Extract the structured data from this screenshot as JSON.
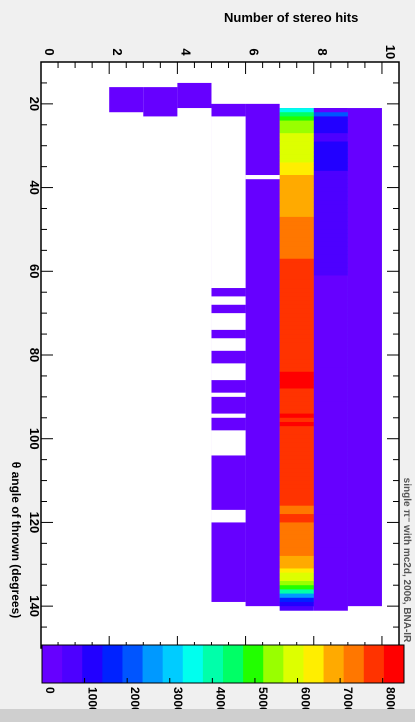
{
  "chart_data": {
    "type": "heatmap",
    "title": "Number of stereo hits",
    "xlabel": "θ angle of thrown (degrees)",
    "ylabel": "",
    "annotation": "single π⁻ with mc2d, 2006, BNA-IR",
    "x_range": [
      10,
      150
    ],
    "y_range": [
      0,
      10.5
    ],
    "x_ticks": [
      20,
      40,
      60,
      80,
      100,
      120,
      140
    ],
    "y_ticks": [
      0,
      2,
      4,
      6,
      8,
      10
    ],
    "colorbar": {
      "min": 0,
      "max": 8500,
      "tick_labels": [
        "0",
        "1000",
        "2000",
        "3000",
        "4000",
        "5000",
        "6000",
        "7000",
        "8000"
      ],
      "tick_values": [
        0,
        1000,
        2000,
        3000,
        4000,
        5000,
        6000,
        7000,
        8000
      ],
      "palette": [
        "#6600ff",
        "#4d00ff",
        "#2200ff",
        "#0022ff",
        "#0055ff",
        "#0099ff",
        "#00ccff",
        "#00ffee",
        "#00ffaa",
        "#00ff66",
        "#22ff00",
        "#99ff00",
        "#ddff00",
        "#ffee00",
        "#ffaa00",
        "#ff7700",
        "#ff3300",
        "#ff0000"
      ]
    },
    "bands": [
      {
        "y": 2.5,
        "x_start": 16,
        "x_end": 22,
        "value": 30
      },
      {
        "y": 3.5,
        "x_start": 16,
        "x_end": 23,
        "value": 30
      },
      {
        "y": 4.5,
        "x_start": 15,
        "x_end": 21,
        "value": 30
      },
      {
        "y": 5.5,
        "x_start": 20,
        "x_end": 139,
        "value": 40
      },
      {
        "y": 6.5,
        "x_start": 20,
        "x_end": 140,
        "value": 400
      },
      {
        "y": 7.5,
        "x_start": 21,
        "x_end": 140,
        "value": 800
      },
      {
        "y": 8.5,
        "x_start": 21,
        "x_end": 140,
        "value": 1200
      },
      {
        "y": 9.5,
        "x_start": 21,
        "x_end": 140,
        "value": 400
      }
    ],
    "gaps": [
      {
        "y": 5.5,
        "x_start": 23,
        "x_end": 64
      },
      {
        "y": 5.5,
        "x_start": 66,
        "x_end": 68
      },
      {
        "y": 5.5,
        "x_start": 70,
        "x_end": 74
      },
      {
        "y": 5.5,
        "x_start": 76,
        "x_end": 79
      },
      {
        "y": 5.5,
        "x_start": 82,
        "x_end": 86
      },
      {
        "y": 5.5,
        "x_start": 89,
        "x_end": 90
      },
      {
        "y": 5.5,
        "x_start": 94,
        "x_end": 95
      },
      {
        "y": 5.5,
        "x_start": 98,
        "x_end": 104
      },
      {
        "y": 5.5,
        "x_start": 117,
        "x_end": 120
      },
      {
        "y": 6.5,
        "x_start": 37,
        "x_end": 38
      }
    ],
    "main_row": {
      "y": 7.5,
      "x_start": 21,
      "x_step": 1,
      "values": [
        3700,
        4700,
        4800,
        5300,
        5600,
        5600,
        5800,
        5800,
        5900,
        6000,
        6000,
        6100,
        6100,
        6400,
        6500,
        6500,
        6700,
        6700,
        6700,
        6800,
        6800,
        6900,
        6900,
        7000,
        7000,
        7000,
        7100,
        7100,
        7300,
        7300,
        7300,
        7400,
        7400,
        7500,
        7500,
        7500,
        7600,
        7600,
        7600,
        7700,
        7700,
        7700,
        7700,
        7800,
        7800,
        7800,
        7800,
        7800,
        7900,
        7900,
        7900,
        7900,
        7900,
        8000,
        8000,
        8000,
        8000,
        8000,
        8000,
        8000,
        8000,
        8000,
        8000,
        8100,
        8100,
        8100,
        8100,
        7800,
        7800,
        7900,
        7800,
        8000,
        7700,
        8100,
        7800,
        8100,
        8000,
        8000,
        7700,
        7800,
        7700,
        7800,
        8000,
        8000,
        8000,
        8000,
        7700,
        7700,
        7800,
        7700,
        7700,
        7700,
        7700,
        7600,
        7600,
        7500,
        7500,
        7600,
        7600,
        7500,
        7500,
        7400,
        7400,
        7300,
        7300,
        7200,
        7100,
        7000,
        6900,
        6800,
        6500,
        6100,
        5700,
        5300,
        4900,
        4000,
        2700,
        1600,
        1000,
        500
      ]
    },
    "row_9": {
      "y": 8.5,
      "x_start": 21,
      "x_step": 1,
      "values": [
        400,
        2000,
        1300,
        1100,
        1000,
        1000,
        900,
        900,
        1000,
        1100,
        1100,
        1300,
        1300,
        1300,
        1100,
        900,
        900,
        900,
        800,
        800,
        800,
        800,
        800,
        800,
        800,
        800,
        800,
        700,
        700,
        700,
        600,
        500,
        500,
        500,
        500,
        500,
        500,
        500,
        500,
        500,
        400,
        400,
        400,
        400,
        400,
        400,
        400,
        400,
        400,
        400,
        400,
        400,
        400,
        400,
        400,
        400,
        400,
        400,
        400,
        400,
        400,
        400,
        400,
        400,
        400,
        400,
        400,
        400,
        400,
        400,
        400,
        400,
        400,
        400,
        400,
        400,
        400,
        400,
        400,
        400,
        400,
        400,
        400,
        400,
        400,
        400,
        400,
        400,
        400,
        400,
        400,
        400,
        400,
        400,
        400,
        400,
        400,
        400,
        400,
        400,
        400,
        400,
        400,
        400,
        400,
        400,
        400,
        400,
        400,
        400,
        400,
        400,
        400,
        400,
        400,
        400,
        400,
        400,
        400,
        400
      ]
    }
  }
}
